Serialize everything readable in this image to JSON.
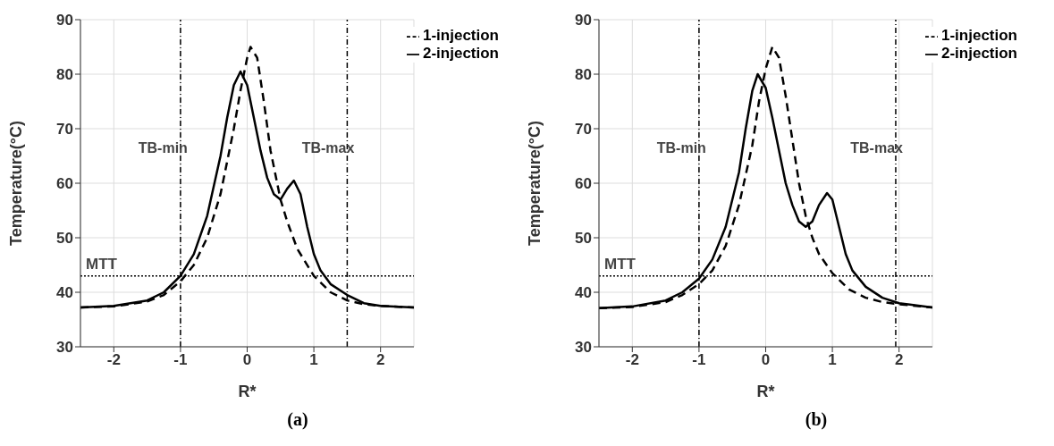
{
  "chart_data": [
    {
      "type": "line",
      "xlabel": "R*",
      "ylabel": "Temperature(°C)",
      "xlim": [
        -2.5,
        2.5
      ],
      "xticks": [
        -2,
        -1,
        0,
        1,
        2
      ],
      "ylim": [
        30,
        90
      ],
      "yticks": [
        30,
        40,
        50,
        60,
        70,
        80,
        90
      ],
      "grid": true,
      "legend": "top right",
      "annotations": [
        "(a)"
      ],
      "ref_lines": [
        {
          "axis": "y",
          "value": 43,
          "label": "MTT",
          "line_style": "dotted",
          "color": "#000000"
        },
        {
          "axis": "x",
          "value": -1,
          "label": "TB-min",
          "line_style": "dashdot",
          "color": "#000000"
        },
        {
          "axis": "x",
          "value": 1.5,
          "label": "TB-max",
          "line_style": "dashdot",
          "color": "#000000"
        }
      ],
      "series": [
        {
          "name": "2-injection",
          "color": "#000000",
          "line_style": "solid",
          "x": [
            -2.5,
            -2,
            -1.5,
            -1.25,
            -1,
            -0.8,
            -0.6,
            -0.4,
            -0.3,
            -0.2,
            -0.1,
            0,
            0.1,
            0.2,
            0.3,
            0.4,
            0.5,
            0.6,
            0.7,
            0.8,
            0.9,
            1,
            1.1,
            1.25,
            1.5,
            1.75,
            2,
            2.5
          ],
          "values": [
            37.2,
            37.5,
            38.5,
            40,
            43,
            47,
            54,
            65,
            72,
            78,
            80.5,
            78,
            72,
            66,
            61,
            58,
            57,
            59,
            60.5,
            58,
            52,
            47,
            44,
            41.5,
            39.5,
            38,
            37.5,
            37.2
          ]
        },
        {
          "name": "1-injection",
          "color": "#000000",
          "line_style": "dashed",
          "x": [
            -2.5,
            -2,
            -1.5,
            -1.25,
            -1,
            -0.8,
            -0.6,
            -0.4,
            -0.2,
            -0.1,
            0,
            0.05,
            0.15,
            0.25,
            0.35,
            0.5,
            0.6,
            0.75,
            1,
            1.25,
            1.5,
            1.75,
            2,
            2.5
          ],
          "values": [
            37.2,
            37.4,
            38.3,
            39.5,
            42,
            45,
            50,
            58,
            70,
            77,
            83,
            85,
            83,
            75,
            66,
            57,
            53,
            48,
            43,
            40,
            38.5,
            37.8,
            37.5,
            37.2
          ]
        }
      ]
    },
    {
      "type": "line",
      "xlabel": "R*",
      "ylabel": "Temperature(°C)",
      "xlim": [
        -2.5,
        2.5
      ],
      "xticks": [
        -2,
        -1,
        0,
        1,
        2
      ],
      "ylim": [
        30,
        90
      ],
      "yticks": [
        30,
        40,
        50,
        60,
        70,
        80,
        90
      ],
      "grid": true,
      "legend": "top right",
      "annotations": [
        "(b)"
      ],
      "ref_lines": [
        {
          "axis": "y",
          "value": 43,
          "label": "MTT",
          "line_style": "dotted",
          "color": "#000000"
        },
        {
          "axis": "x",
          "value": -1,
          "label": "TB-min",
          "line_style": "dashdot",
          "color": "#000000"
        },
        {
          "axis": "x",
          "value": 1.95,
          "label": "TB-max",
          "line_style": "dashdot",
          "color": "#000000"
        }
      ],
      "series": [
        {
          "name": "2-injection",
          "color": "#000000",
          "line_style": "solid",
          "x": [
            -2.5,
            -2,
            -1.5,
            -1.25,
            -1,
            -0.8,
            -0.6,
            -0.4,
            -0.3,
            -0.2,
            -0.12,
            0,
            0.1,
            0.2,
            0.3,
            0.4,
            0.5,
            0.6,
            0.7,
            0.8,
            0.92,
            1,
            1.1,
            1.2,
            1.3,
            1.5,
            1.75,
            2,
            2.5
          ],
          "values": [
            37.1,
            37.4,
            38.5,
            40,
            42.5,
            46,
            52,
            62,
            70,
            77,
            80,
            77.5,
            72,
            66,
            60,
            56,
            53,
            52,
            53,
            56,
            58.2,
            57,
            52,
            47,
            44,
            41,
            39,
            38,
            37.2
          ]
        },
        {
          "name": "1-injection",
          "color": "#000000",
          "line_style": "dashed",
          "x": [
            -2.5,
            -2,
            -1.5,
            -1.25,
            -1,
            -0.8,
            -0.6,
            -0.4,
            -0.2,
            -0.1,
            0,
            0.1,
            0.2,
            0.3,
            0.4,
            0.5,
            0.6,
            0.7,
            0.8,
            1,
            1.25,
            1.5,
            1.75,
            2,
            2.5
          ],
          "values": [
            37.1,
            37.3,
            38.2,
            39.5,
            41.5,
            44,
            48.5,
            56,
            67,
            75,
            81,
            85,
            83,
            76,
            68,
            60,
            54,
            50,
            47,
            43.5,
            40.5,
            39,
            38.2,
            37.8,
            37.2
          ]
        }
      ]
    }
  ]
}
